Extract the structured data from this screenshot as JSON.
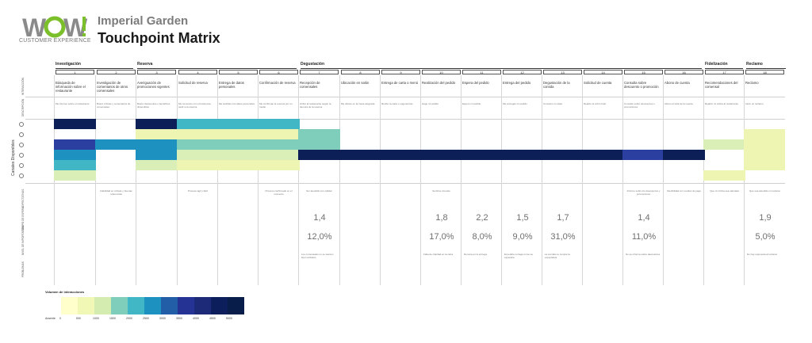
{
  "brand": {
    "logo_text": "WOW!",
    "logo_sub": "CUSTOMER EXPERIENCE"
  },
  "title": {
    "line1": "Imperial Garden",
    "line2": "Touchpoint Matrix"
  },
  "phases": [
    {
      "label": "Investigación"
    },
    {
      "label": "Reserva"
    },
    {
      "label": "Degustación"
    },
    {
      "label": "Fidelización"
    },
    {
      "label": "Reclamo"
    }
  ],
  "touchpoints": [
    {
      "num": "1",
      "name": "Búsqueda de información sobre el restaurante",
      "desc": "Me informo sobre el restaurante"
    },
    {
      "num": "2",
      "name": "Investigación de comentarios de otros comensales",
      "desc": "Busco críticas y comentarios de comensales"
    },
    {
      "num": "3",
      "name": "Averiguación de promociones vigentes",
      "desc": "Busco descuentos o beneficios disponibles"
    },
    {
      "num": "4",
      "name": "Solicitud de reserva",
      "desc": "Me comunico con el local para pedir una reserva"
    },
    {
      "num": "5",
      "name": "Entrega de datos personales",
      "desc": "Me solicitan mis datos personales"
    },
    {
      "num": "6",
      "name": "Confirmación de reserva",
      "desc": "Me confirman la reserva por un medio"
    },
    {
      "num": "7",
      "name": "Recepción de comensales",
      "desc": "Arribo al restaurante según la demora de la reserva"
    },
    {
      "num": "8",
      "name": "Ubicación en salón",
      "desc": "Me ubican en la mesa asignada"
    },
    {
      "num": "9",
      "name": "Entrega de carta o menú",
      "desc": "Recibo la carta o sugerencias"
    },
    {
      "num": "10",
      "name": "Realización del pedido",
      "desc": "Hago mi pedido"
    },
    {
      "num": "11",
      "name": "Espera del pedido",
      "desc": "Espero mi pedido"
    },
    {
      "num": "12",
      "name": "Entrega del pedido",
      "desc": "Me entregan mi pedido"
    },
    {
      "num": "13",
      "name": "Degustación de la comida",
      "desc": "Consumo mi plato"
    },
    {
      "num": "14",
      "name": "Solicitud de cuenta",
      "desc": "Realizo el cobro final"
    },
    {
      "num": "15",
      "name": "Consulta sobre descuento o promoción",
      "desc": "Consulto sobre descuentos o promociones"
    },
    {
      "num": "16",
      "name": "Abono de cuenta",
      "desc": "Abono el total de la cuenta"
    },
    {
      "num": "17",
      "name": "Recomendaciones del comensal",
      "desc": "Realizo mi crítica al restaurante"
    },
    {
      "num": "18",
      "name": "Reclamo",
      "desc": "Inicio un reclamo"
    }
  ],
  "row_labels": {
    "interaction": "INTERACCIÓN",
    "description": "DESCRIPCIÓN",
    "channels": "Canales Disponibles",
    "expectations": "EXPECTATIVAS",
    "wait": "TIEMPO DE ESPERA",
    "importance": "NIVEL DE IMPORTANCIA",
    "problems": "PROBLEMAS"
  },
  "expectations": {
    "2": "Fiabilidad en críticas y buenas referencias",
    "4": "Proceso ágil y fácil",
    "6": "Proceso confirmado en el momento",
    "7": "Ser atendido con calidez",
    "10": "Sentirse cómodo",
    "15": "Informe sobre los descuentos y promociones",
    "16": "Flexibilidad con medios de pago",
    "17": "Que mi crítica sea valorada",
    "18": "Que sea atendido mi reclamo"
  },
  "wait_time": {
    "7": "1,4",
    "10": "1,8",
    "11": "2,2",
    "12": "1,5",
    "13": "1,7",
    "15": "1,4",
    "18": "1,9"
  },
  "importance": {
    "7": "12,0%",
    "10": "17,0%",
    "11": "8,0%",
    "12": "9,0%",
    "13": "31,0%",
    "15": "11,0%",
    "18": "5,0%"
  },
  "problems": {
    "7": "Los comensales no se sienten bien recibidos",
    "10": "Falta de claridad en la carta",
    "11": "Demora en la entrega",
    "12": "El pedido no llega como se esperaba",
    "13": "La comida no cumple la expectativa",
    "15": "No se informa sobre descuentos",
    "18": "No hay respuesta al reclamo"
  },
  "legend": {
    "title": "Volumen de interacciones",
    "min_label": "Ausente",
    "stops": [
      "0",
      "500",
      "1000",
      "1500",
      "2000",
      "2500",
      "3000",
      "3500",
      "4000",
      "4500",
      "5000"
    ],
    "colors": [
      "#ffffcc",
      "#f1f8b6",
      "#d5ecb0",
      "#7fcdbb",
      "#41b6c4",
      "#1d91c0",
      "#225ea8",
      "#253494",
      "#1d2a78",
      "#0c1f5c",
      "#081d4a"
    ]
  },
  "palette": {
    "c1": "#eef4b2",
    "c2": "#d9efb7",
    "c3": "#7fcdbb",
    "c4": "#41b6c4",
    "c5": "#1d91c0",
    "c6": "#2b3fa0",
    "c7": "#0c2057"
  }
}
